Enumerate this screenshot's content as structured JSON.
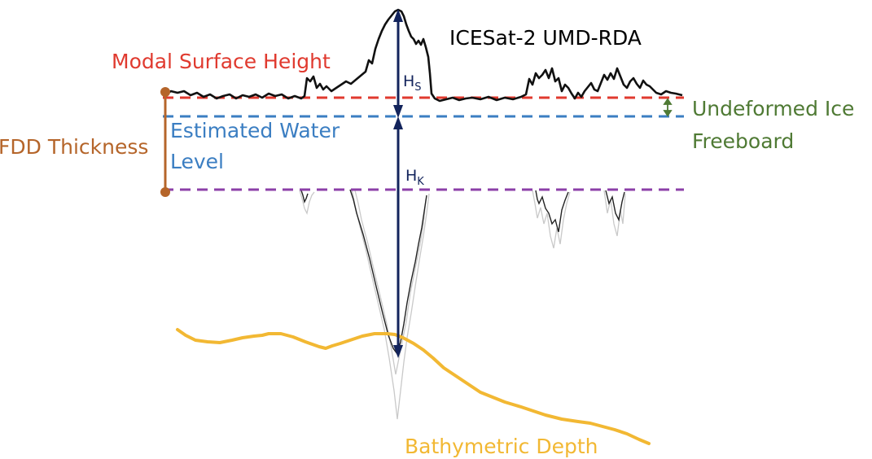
{
  "title": "ICESat-2 UMD-RDA",
  "labels": {
    "modal_surface_height": "Modal Surface Height",
    "fdd_thickness": "FDD Thickness",
    "estimated_water_level_1": "Estimated Water",
    "estimated_water_level_2": "Level",
    "undeformed_ice_1": "Undeformed Ice",
    "undeformed_ice_2": "Freeboard",
    "bathymetric_depth": "Bathymetric Depth",
    "hs_main": "H",
    "hs_sub": "S",
    "hk_main": "H",
    "hk_sub": "K"
  },
  "colors": {
    "modal_surface": "#e03a2f",
    "water_level": "#3b7ec2",
    "fdd_line": "#8c3fa8",
    "fdd_thickness": "#b5652a",
    "freeboard": "#4f7a34",
    "bathymetry": "#f2b833",
    "arrow": "#13245c",
    "profile": "#111111",
    "keel_light": "#c4c4c4"
  }
}
